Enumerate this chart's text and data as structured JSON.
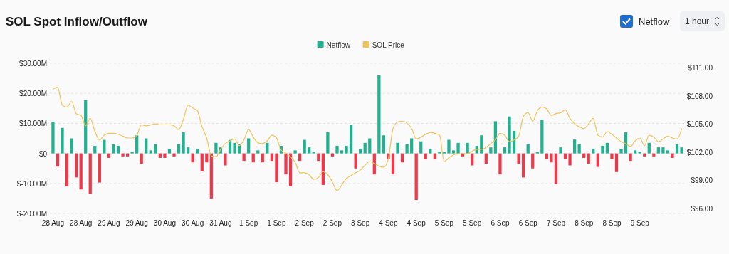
{
  "chart_data": {
    "type": "bar",
    "title": "SOL Spot Inflow/Outflow",
    "annotations": [
      "Netflow",
      "1 hour"
    ],
    "categories": [
      "28 Aug",
      null,
      null,
      null,
      null,
      null,
      "28 Aug",
      null,
      null,
      null,
      null,
      null,
      "29 Aug",
      null,
      null,
      null,
      null,
      null,
      "29 Aug",
      null,
      null,
      null,
      null,
      null,
      "30 Aug",
      null,
      null,
      null,
      null,
      null,
      "30 Aug",
      null,
      null,
      null,
      null,
      null,
      "31 Aug",
      null,
      null,
      null,
      null,
      null,
      "1 Sep",
      null,
      null,
      null,
      null,
      null,
      "1 Sep",
      null,
      null,
      null,
      null,
      null,
      "2 Sep",
      null,
      null,
      null,
      null,
      null,
      "2 Sep",
      null,
      null,
      null,
      null,
      null,
      "3 Sep",
      null,
      null,
      null,
      null,
      null,
      "4 Sep",
      null,
      null,
      null,
      null,
      null,
      "4 Sep",
      null,
      null,
      null,
      null,
      null,
      "5 Sep",
      null,
      null,
      null,
      null,
      null,
      "5 Sep",
      null,
      null,
      null,
      null,
      null,
      "6 Sep",
      null,
      null,
      null,
      null,
      null,
      "6 Sep",
      null,
      null,
      null,
      null,
      null,
      "7 Sep",
      null,
      null,
      null,
      null,
      null,
      "8 Sep",
      null,
      null,
      null,
      null,
      null,
      "8 Sep",
      null,
      null,
      null,
      null,
      null,
      "9 Sep",
      null,
      null,
      null,
      null,
      null,
      null,
      null,
      null,
      null
    ],
    "series": [
      {
        "name": "Netflow",
        "color": "#22b08e",
        "values": [
          10.5,
          -4.4,
          8.5,
          -11,
          5,
          -8,
          -12,
          17.8,
          -13.4,
          2.5,
          -9.7,
          4.5,
          -1.5,
          3,
          2.5,
          -1,
          -1,
          0.5,
          6,
          -3.5,
          5,
          1,
          3,
          -1.5,
          -1.5,
          1.5,
          -1,
          3,
          7,
          2,
          -3,
          1.5,
          -6,
          -3,
          -15,
          3.5,
          2,
          -4,
          4.5,
          3.5,
          3,
          -2.5,
          5,
          -3,
          1,
          -3,
          3.5,
          -2.5,
          -9.6,
          2.5,
          -7,
          -11,
          1,
          -2.5,
          4.5,
          2,
          0.5,
          -2.5,
          -10.5,
          7,
          -1,
          2.5,
          1,
          2.5,
          9.5,
          -5,
          1.5,
          3.5,
          5,
          -7,
          26,
          6,
          -2,
          -7,
          3.5,
          -3,
          3,
          5,
          -15.5,
          4,
          -2,
          1.5,
          -2,
          0.5,
          0.5,
          4.5,
          1,
          3.5,
          -1,
          3.5,
          -4,
          2.5,
          6,
          -3.5,
          2,
          10.7,
          -7,
          2,
          12.3,
          7.5,
          -3.5,
          -8,
          3,
          -5,
          0.5,
          11.2,
          -2,
          -3,
          -10.2,
          2,
          -2,
          -4,
          4.6,
          3,
          -1.5,
          -3.5,
          1.5,
          -4.5,
          2.5,
          3.5,
          -2,
          -6.2,
          1.5,
          7,
          -2.5,
          1,
          0.5,
          -1,
          3.5,
          -1,
          2,
          2,
          1,
          -1.5,
          3,
          2
        ],
        "colors": [
          "#22b08e",
          "#ea3a4b",
          "#22b08e",
          "#ea3a4b",
          "#22b08e",
          "#ea3a4b",
          "#ea3a4b",
          "#22b08e",
          "#ea3a4b",
          "#22b08e",
          "#ea3a4b",
          "#22b08e",
          "#ea3a4b",
          "#22b08e",
          "#22b08e",
          "#ea3a4b",
          "#ea3a4b",
          "#22b08e",
          "#22b08e",
          "#ea3a4b",
          "#22b08e",
          "#22b08e",
          "#22b08e",
          "#ea3a4b",
          "#ea3a4b",
          "#22b08e",
          "#ea3a4b",
          "#22b08e",
          "#22b08e",
          "#22b08e",
          "#ea3a4b",
          "#22b08e",
          "#ea3a4b",
          "#ea3a4b",
          "#ea3a4b",
          "#22b08e",
          "#22b08e",
          "#ea3a4b",
          "#22b08e",
          "#22b08e",
          "#22b08e",
          "#ea3a4b",
          "#22b08e",
          "#ea3a4b",
          "#22b08e",
          "#ea3a4b",
          "#22b08e",
          "#ea3a4b",
          "#ea3a4b",
          "#22b08e",
          "#ea3a4b",
          "#ea3a4b",
          "#22b08e",
          "#ea3a4b",
          "#22b08e",
          "#22b08e",
          "#22b08e",
          "#ea3a4b",
          "#ea3a4b",
          "#22b08e",
          "#ea3a4b",
          "#22b08e",
          "#22b08e",
          "#22b08e",
          "#22b08e",
          "#ea3a4b",
          "#22b08e",
          "#22b08e",
          "#22b08e",
          "#ea3a4b",
          "#22b08e",
          "#22b08e",
          "#ea3a4b",
          "#ea3a4b",
          "#22b08e",
          "#ea3a4b",
          "#22b08e",
          "#22b08e",
          "#ea3a4b",
          "#22b08e",
          "#ea3a4b",
          "#22b08e",
          "#ea3a4b",
          "#22b08e",
          "#22b08e",
          "#22b08e",
          "#22b08e",
          "#22b08e",
          "#ea3a4b",
          "#22b08e",
          "#ea3a4b",
          "#22b08e",
          "#22b08e",
          "#ea3a4b",
          "#22b08e",
          "#22b08e",
          "#ea3a4b",
          "#22b08e",
          "#22b08e",
          "#22b08e",
          "#ea3a4b",
          "#ea3a4b",
          "#22b08e",
          "#ea3a4b",
          "#22b08e",
          "#22b08e",
          "#ea3a4b",
          "#ea3a4b",
          "#ea3a4b",
          "#22b08e",
          "#ea3a4b",
          "#ea3a4b",
          "#22b08e",
          "#22b08e",
          "#ea3a4b",
          "#ea3a4b",
          "#22b08e",
          "#ea3a4b",
          "#22b08e",
          "#22b08e",
          "#ea3a4b",
          "#ea3a4b",
          "#22b08e",
          "#22b08e",
          "#ea3a4b",
          "#22b08e",
          "#22b08e",
          "#ea3a4b",
          "#22b08e",
          "#ea3a4b",
          "#22b08e",
          "#22b08e",
          "#22b08e",
          "#ea3a4b",
          "#22b08e",
          "#22b08e"
        ]
      },
      {
        "name": "SOL Price",
        "type": "line",
        "axis": "y2",
        "color": "#f0c45c",
        "values": [
          108.7,
          108.9,
          107.0,
          106.8,
          107.4,
          106.1,
          105.9,
          104.8,
          105.6,
          104.2,
          103.3,
          103.8,
          104.0,
          104.0,
          103.9,
          103.7,
          103.5,
          103.5,
          103.8,
          104.9,
          104.8,
          104.9,
          105.0,
          104.9,
          104.9,
          104.9,
          104.8,
          104.4,
          105.5,
          107.0,
          106.7,
          106.4,
          104.7,
          103.5,
          101.6,
          101.5,
          102.3,
          102.9,
          103.2,
          103.4,
          102.7,
          103.3,
          104.4,
          103.6,
          103.0,
          102.9,
          103.2,
          103.8,
          103.5,
          102.2,
          101.9,
          101.5,
          100.9,
          99.8,
          99.8,
          99.6,
          99.1,
          99.3,
          99.9,
          99.6,
          98.8,
          97.9,
          98.5,
          99.2,
          99.5,
          99.8,
          100.1,
          100.6,
          101.0,
          100.8,
          100.5,
          100.4,
          101.3,
          104.5,
          105.2,
          105.3,
          105.1,
          104.5,
          103.4,
          103.6,
          103.9,
          104.1,
          104.0,
          103.8,
          101.0,
          101.4,
          101.7,
          101.8,
          101.8,
          101.8,
          102.1,
          102.3,
          102.3,
          102.5,
          102.9,
          103.3,
          104.0,
          103.8,
          103.1,
          103.3,
          103.7,
          105.8,
          106.2,
          105.3,
          106.4,
          106.8,
          106.6,
          105.9,
          106.1,
          106.2,
          106.5,
          105.6,
          105.0,
          104.7,
          104.5,
          105.0,
          105.6,
          103.8,
          103.6,
          104.2,
          103.9,
          103.5,
          103.1,
          102.9,
          102.6,
          103.2,
          103.5,
          102.7,
          103.8,
          103.6,
          103.1,
          103.4,
          103.7,
          103.5,
          103.4,
          104.5
        ]
      }
    ],
    "ylim": [
      -20,
      30
    ],
    "yticks": [
      {
        "value": -20,
        "label": "$-20.00M"
      },
      {
        "value": -10,
        "label": "$-10.00M"
      },
      {
        "value": 0,
        "label": "$0"
      },
      {
        "value": 10,
        "label": "$10.00M"
      },
      {
        "value": 20,
        "label": "$20.00M"
      },
      {
        "value": 30,
        "label": "$30.00M"
      }
    ],
    "y2lim": [
      96,
      111
    ],
    "y2ticks": [
      {
        "value": 96,
        "label": "$96.00"
      },
      {
        "value": 99,
        "label": "$99.00"
      },
      {
        "value": 102,
        "label": "$102.00"
      },
      {
        "value": 105,
        "label": "$105.00"
      },
      {
        "value": 108,
        "label": "$108.00"
      },
      {
        "value": 111,
        "label": "$111.00"
      }
    ],
    "grid": "y",
    "legend": "top",
    "marker": "none",
    "line_style": "solid"
  }
}
